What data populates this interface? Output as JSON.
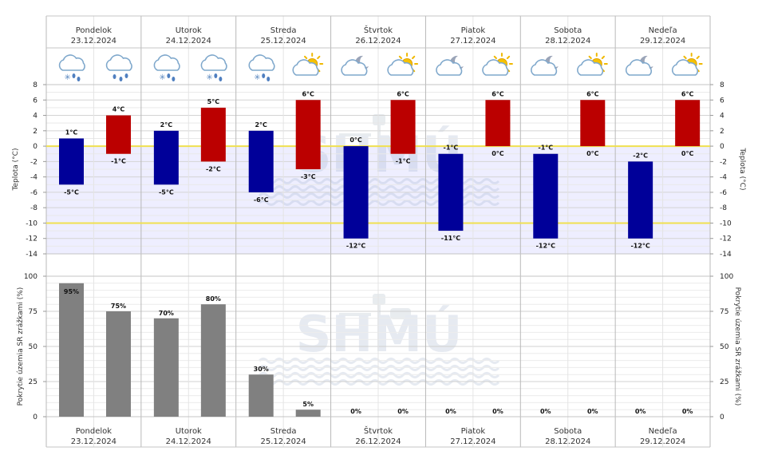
{
  "days": [
    {
      "name": "Pondelok",
      "date": "23.12.2024",
      "icons": [
        "cloud-snow-rain-icon",
        "cloud-rain-icon"
      ]
    },
    {
      "name": "Utorok",
      "date": "24.12.2024",
      "icons": [
        "cloud-snow-rain-icon",
        "cloud-snow-rain-icon"
      ]
    },
    {
      "name": "Streda",
      "date": "25.12.2024",
      "icons": [
        "cloud-snow-rain-icon",
        "sun-cloud-icon"
      ]
    },
    {
      "name": "Štvrtok",
      "date": "26.12.2024",
      "icons": [
        "moon-cloud-icon",
        "sun-cloud-icon"
      ]
    },
    {
      "name": "Piatok",
      "date": "27.12.2024",
      "icons": [
        "moon-cloud-icon",
        "sun-cloud-icon"
      ]
    },
    {
      "name": "Sobota",
      "date": "28.12.2024",
      "icons": [
        "moon-cloud-icon",
        "sun-cloud-icon"
      ]
    },
    {
      "name": "Nedeľa",
      "date": "29.12.2024",
      "icons": [
        "moon-cloud-icon",
        "sun-cloud-icon"
      ]
    }
  ],
  "watermark": "SHMÚ",
  "colors": {
    "night_bar": "#000099",
    "day_bar": "#bb0000",
    "precip_bar": "#808080",
    "zero_line": "#f0e050",
    "band": "#eeeeff"
  },
  "chart_data": [
    {
      "type": "bar",
      "ylabel": "Teplota (°C)",
      "ylim": [
        -14,
        8
      ],
      "yticks": [
        8,
        6,
        4,
        2,
        0,
        -2,
        -4,
        -6,
        -8,
        -10,
        -12,
        -14
      ],
      "reference_lines": [
        0,
        -10
      ],
      "series": [
        {
          "periods": [
            {
              "top": 1,
              "bottom": -5,
              "top_label": "1°C",
              "bottom_label": "-5°C"
            },
            {
              "top": 2,
              "bottom": -5,
              "top_label": "2°C",
              "bottom_label": "-5°C"
            },
            {
              "top": 2,
              "bottom": -6,
              "top_label": "2°C",
              "bottom_label": "-6°C"
            },
            {
              "top": 0,
              "bottom": -12,
              "top_label": "0°C",
              "bottom_label": "-12°C"
            },
            {
              "top": -1,
              "bottom": -11,
              "top_label": "-1°C",
              "bottom_label": "-11°C"
            },
            {
              "top": -1,
              "bottom": -12,
              "top_label": "-1°C",
              "bottom_label": "-12°C"
            },
            {
              "top": -2,
              "bottom": -12,
              "top_label": "-2°C",
              "bottom_label": "-12°C"
            }
          ]
        },
        {
          "periods": [
            {
              "top": 4,
              "bottom": -1,
              "top_label": "4°C",
              "bottom_label": "-1°C"
            },
            {
              "top": 5,
              "bottom": -2,
              "top_label": "5°C",
              "bottom_label": "-2°C"
            },
            {
              "top": 6,
              "bottom": -3,
              "top_label": "6°C",
              "bottom_label": "-3°C"
            },
            {
              "top": 6,
              "bottom": -1,
              "top_label": "6°C",
              "bottom_label": "-1°C"
            },
            {
              "top": 6,
              "bottom": 0,
              "top_label": "6°C",
              "bottom_label": "0°C"
            },
            {
              "top": 6,
              "bottom": 0,
              "top_label": "6°C",
              "bottom_label": "0°C"
            },
            {
              "top": 6,
              "bottom": 0,
              "top_label": "6°C",
              "bottom_label": "0°C"
            }
          ]
        }
      ]
    },
    {
      "type": "bar",
      "ylabel": "Pokrytie územia SR zrážkami (%)",
      "ylim": [
        0,
        100
      ],
      "yticks": [
        100,
        75,
        50,
        25,
        0
      ],
      "values": [
        [
          95,
          75
        ],
        [
          70,
          80
        ],
        [
          30,
          5
        ],
        [
          0,
          0
        ],
        [
          0,
          0
        ],
        [
          0,
          0
        ],
        [
          0,
          0
        ]
      ],
      "labels": [
        [
          "95%",
          "75%"
        ],
        [
          "70%",
          "80%"
        ],
        [
          "30%",
          "5%"
        ],
        [
          "0%",
          "0%"
        ],
        [
          "0%",
          "0%"
        ],
        [
          "0%",
          "0%"
        ],
        [
          "0%",
          "0%"
        ]
      ]
    }
  ]
}
